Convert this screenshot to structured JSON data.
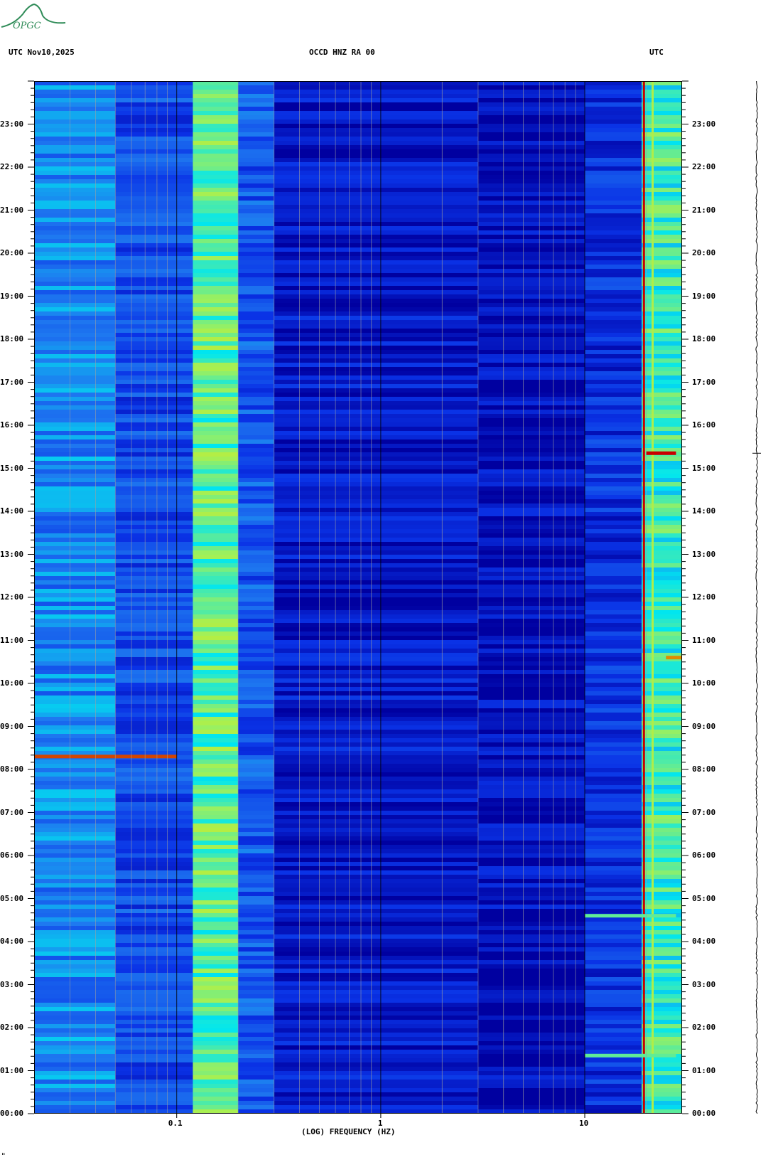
{
  "logo": {
    "text": "OPGC",
    "icon": "volcano-logo-icon",
    "color": "#2e8b57"
  },
  "header": {
    "left": "UTC  Nov10,2025",
    "center": "OCCD HNZ RA 00",
    "right": "UTC"
  },
  "footer_mark": "\"",
  "chart_data": {
    "type": "heatmap",
    "title": "OCCD HNZ RA 00",
    "date": "Nov10,2025",
    "xlabel": "(LOG) FREQUENCY (HZ)",
    "ylabel": "UTC",
    "x_scale": "log",
    "xlim": [
      0.02,
      30
    ],
    "x_ticks": [
      {
        "value": 0.1,
        "label": "0.1"
      },
      {
        "value": 1,
        "label": "1"
      },
      {
        "value": 10,
        "label": "10"
      }
    ],
    "ylim": [
      0,
      24
    ],
    "y_ticks": [
      {
        "value": 0,
        "label": "00:00"
      },
      {
        "value": 1,
        "label": "01:00"
      },
      {
        "value": 2,
        "label": "02:00"
      },
      {
        "value": 3,
        "label": "03:00"
      },
      {
        "value": 4,
        "label": "04:00"
      },
      {
        "value": 5,
        "label": "05:00"
      },
      {
        "value": 6,
        "label": "06:00"
      },
      {
        "value": 7,
        "label": "07:00"
      },
      {
        "value": 8,
        "label": "08:00"
      },
      {
        "value": 9,
        "label": "09:00"
      },
      {
        "value": 10,
        "label": "10:00"
      },
      {
        "value": 11,
        "label": "11:00"
      },
      {
        "value": 12,
        "label": "12:00"
      },
      {
        "value": 13,
        "label": "13:00"
      },
      {
        "value": 14,
        "label": "14:00"
      },
      {
        "value": 15,
        "label": "15:00"
      },
      {
        "value": 16,
        "label": "16:00"
      },
      {
        "value": 17,
        "label": "17:00"
      },
      {
        "value": 18,
        "label": "18:00"
      },
      {
        "value": 19,
        "label": "19:00"
      },
      {
        "value": 20,
        "label": "20:00"
      },
      {
        "value": 21,
        "label": "21:00"
      },
      {
        "value": 22,
        "label": "22:00"
      },
      {
        "value": 23,
        "label": "23:00"
      }
    ],
    "grid": true,
    "colormap": [
      "#0000a0",
      "#0a32e6",
      "#1e78f0",
      "#00e6f0",
      "#a0f05a",
      "#f0e600",
      "#c80000"
    ],
    "frequency_bands": [
      {
        "f_min": 0.02,
        "f_max": 0.05,
        "intensity": 0.35
      },
      {
        "f_min": 0.05,
        "f_max": 0.12,
        "intensity": 0.22
      },
      {
        "f_min": 0.12,
        "f_max": 0.2,
        "intensity": 0.6
      },
      {
        "f_min": 0.2,
        "f_max": 0.3,
        "intensity": 0.25
      },
      {
        "f_min": 0.3,
        "f_max": 3.0,
        "intensity": 0.08
      },
      {
        "f_min": 3.0,
        "f_max": 10,
        "intensity": 0.05
      },
      {
        "f_min": 10,
        "f_max": 19,
        "intensity": 0.15
      },
      {
        "f_min": 19,
        "f_max": 30,
        "intensity": 0.55
      }
    ],
    "persistent_lines": [
      {
        "frequency": 19.5,
        "intensity": 1.0
      },
      {
        "frequency": 21.5,
        "intensity": 0.7
      }
    ],
    "events": [
      {
        "time": 8.3,
        "f_min": 0.02,
        "f_max": 0.1,
        "intensity": 0.95
      },
      {
        "time": 15.35,
        "f_min": 20,
        "f_max": 28,
        "intensity": 1.0
      },
      {
        "time": 10.6,
        "f_min": 25,
        "f_max": 30,
        "intensity": 0.9
      },
      {
        "time": 4.6,
        "f_min": 10,
        "f_max": 28,
        "intensity": 0.6
      },
      {
        "time": 1.35,
        "f_min": 10,
        "f_max": 28,
        "intensity": 0.6
      }
    ]
  }
}
